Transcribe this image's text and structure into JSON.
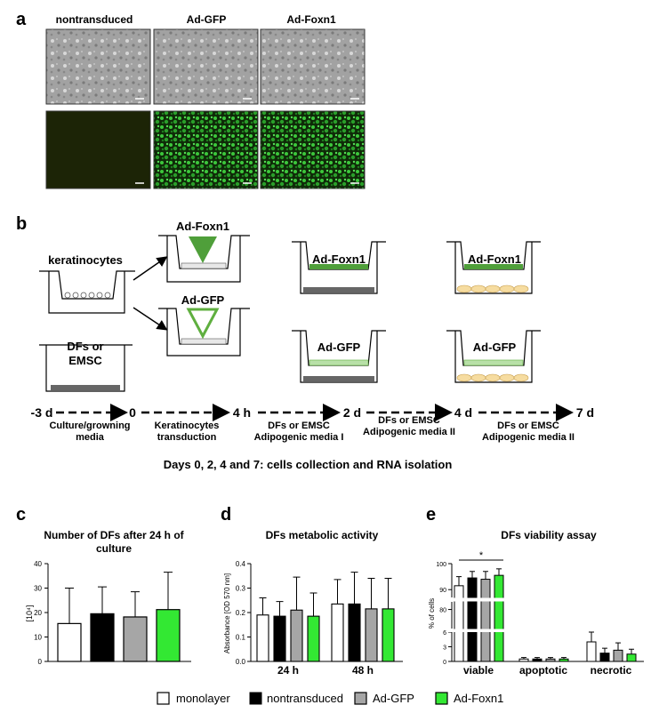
{
  "panel_a": {
    "letter": "a",
    "columns": [
      "nontransduced",
      "Ad-GFP",
      "Ad-Foxn1"
    ]
  },
  "panel_b": {
    "letter": "b",
    "labels": {
      "keratinocytes": "keratinocytes",
      "dfs_line1": "DFs or",
      "dfs_line2": "EMSC",
      "foxn1": "Ad-Foxn1",
      "gfp": "Ad-GFP"
    },
    "timeline": {
      "points": [
        "-3 d",
        "0",
        "4 h",
        "2 d",
        "4 d",
        "7 d"
      ],
      "steps": [
        [
          "Culture/growning",
          "media"
        ],
        [
          "Keratinocytes",
          "transduction"
        ],
        [
          "DFs or EMSC",
          "Adipogenic media I"
        ],
        [
          "DFs or EMSC",
          "Adipogenic media II"
        ],
        [
          "DFs or EMSC",
          "Adipogenic media II"
        ]
      ]
    },
    "note": "Days 0, 2, 4 and 7: cells collection and RNA isolation"
  },
  "colors": {
    "monolayer": "#ffffff",
    "nontransduced": "#000000",
    "ad_gfp": "#a6a6a6",
    "ad_foxn1": "#33e833",
    "gfp_green": "#5faf3f",
    "fluor_bg": "#0e1a04",
    "fluor_green": "#2fbf2f",
    "phase_bg": "#9a9a9a"
  },
  "legend": [
    "monolayer",
    "nontransduced",
    "Ad-GFP",
    "Ad-Foxn1"
  ],
  "chart_data": [
    {
      "panel": "c",
      "type": "bar",
      "title": "Number of DFs after 24 h of culture",
      "ylabel": "[10⁴]",
      "ylim": [
        0,
        40
      ],
      "yticks": [
        0,
        10,
        20,
        30,
        40
      ],
      "categories": [
        "monolayer",
        "nontransduced",
        "Ad-GFP",
        "Ad-Foxn1"
      ],
      "values": [
        15.5,
        19.5,
        18.2,
        21.2
      ],
      "errors": [
        14.5,
        11,
        10.3,
        15.3
      ]
    },
    {
      "panel": "d",
      "type": "bar",
      "title": "DFs metabolic activity",
      "ylabel": "Absorbance [OD 570 nm]",
      "ylim": [
        0,
        0.4
      ],
      "yticks": [
        "0.0",
        "0.1",
        "0.2",
        "0.3",
        "0.4"
      ],
      "categories": [
        "24 h",
        "48 h"
      ],
      "series": [
        {
          "name": "monolayer",
          "values": [
            0.19,
            0.235
          ],
          "errors": [
            0.07,
            0.1
          ]
        },
        {
          "name": "nontransduced",
          "values": [
            0.185,
            0.235
          ],
          "errors": [
            0.06,
            0.13
          ]
        },
        {
          "name": "Ad-GFP",
          "values": [
            0.21,
            0.215
          ],
          "errors": [
            0.135,
            0.125
          ]
        },
        {
          "name": "Ad-Foxn1",
          "values": [
            0.185,
            0.215
          ],
          "errors": [
            0.095,
            0.125
          ]
        }
      ]
    },
    {
      "panel": "e",
      "type": "bar",
      "title": "DFs viability assay",
      "ylabel": "% of cells",
      "yticks": [
        "0",
        "3",
        "6",
        "80",
        "90",
        "100"
      ],
      "axis_breaks": true,
      "categories": [
        "viable",
        "apoptotic",
        "necrotic"
      ],
      "series": [
        {
          "name": "monolayer",
          "values": [
            91.5,
            0.5,
            4.0
          ],
          "errors": [
            3.5,
            0.3,
            2.5
          ]
        },
        {
          "name": "nontransduced",
          "values": [
            94.5,
            0.5,
            1.7
          ],
          "errors": [
            2.5,
            0.3,
            1.0
          ]
        },
        {
          "name": "Ad-GFP",
          "values": [
            94.0,
            0.5,
            2.3
          ],
          "errors": [
            3.0,
            0.3,
            1.5
          ]
        },
        {
          "name": "Ad-Foxn1",
          "values": [
            95.5,
            0.5,
            1.5
          ],
          "errors": [
            2.5,
            0.3,
            1.0
          ]
        }
      ],
      "annotation": "*"
    }
  ]
}
